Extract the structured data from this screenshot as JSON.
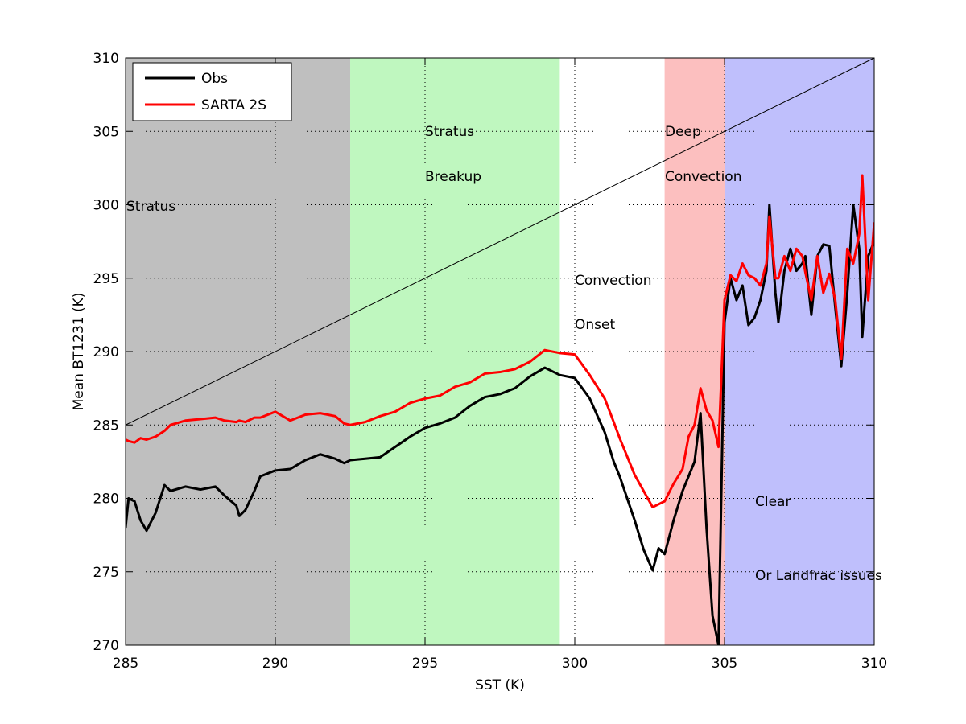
{
  "chart_data": {
    "type": "line",
    "x_label": "SST (K)",
    "y_label": "Mean BT1231 (K)",
    "xlim": [
      285,
      310
    ],
    "ylim": [
      270,
      310
    ],
    "xticks": [
      285,
      290,
      295,
      300,
      305,
      310
    ],
    "yticks": [
      270,
      275,
      280,
      285,
      290,
      295,
      300,
      305,
      310
    ],
    "grid": true,
    "legend": "upper-left",
    "regions": [
      {
        "from": 285,
        "to": 292.5,
        "color": "#bfbfbf"
      },
      {
        "from": 292.5,
        "to": 299.5,
        "color": "#bff7bf"
      },
      {
        "from": 303,
        "to": 305,
        "color": "#fcbfbf"
      },
      {
        "from": 305,
        "to": 310,
        "color": "#bfbffc"
      }
    ],
    "annotations": [
      "Stratus",
      "Stratus",
      "Breakup",
      "Convection",
      "Onset",
      "Deep",
      "Convection",
      "Clear",
      "Or Landfrac issues"
    ],
    "reference_line": {
      "x": [
        285,
        310
      ],
      "y": [
        285,
        310
      ],
      "color": "#000000"
    },
    "x": [
      285,
      285.1,
      285.3,
      285.5,
      285.7,
      286,
      286.3,
      286.5,
      287,
      287.5,
      288,
      288.3,
      288.7,
      288.8,
      289,
      289.3,
      289.5,
      290,
      290.5,
      291,
      291.5,
      292,
      292.3,
      292.5,
      293,
      293.5,
      294,
      294.5,
      295,
      295.5,
      296,
      296.5,
      297,
      297.5,
      298,
      298.5,
      299,
      299.5,
      300,
      300.5,
      301,
      301.3,
      301.5,
      302,
      302.3,
      302.6,
      302.8,
      303,
      303.3,
      303.6,
      303.8,
      304,
      304.2,
      304.4,
      304.6,
      304.8,
      305,
      305.2,
      305.4,
      305.6,
      305.8,
      306,
      306.2,
      306.4,
      306.5,
      306.7,
      306.8,
      307,
      307.2,
      307.4,
      307.6,
      307.7,
      307.9,
      308.1,
      308.3,
      308.5,
      308.7,
      308.9,
      309.1,
      309.3,
      309.5,
      309.6,
      309.8,
      310
    ],
    "series": [
      {
        "name": "Obs",
        "color": "#000000",
        "values": [
          278,
          280,
          279.8,
          278.5,
          277.8,
          279,
          280.9,
          280.5,
          280.8,
          280.6,
          280.8,
          280.2,
          279.5,
          278.8,
          279.2,
          280.5,
          281.5,
          281.9,
          282,
          282.6,
          283,
          282.7,
          282.4,
          282.6,
          282.7,
          282.8,
          283.5,
          284.2,
          284.8,
          285.1,
          285.5,
          286.3,
          286.9,
          287.1,
          287.5,
          288.3,
          288.9,
          288.4,
          288.2,
          286.8,
          284.5,
          282.5,
          281.5,
          278.5,
          276.5,
          275.1,
          276.6,
          276.2,
          278.5,
          280.5,
          281.5,
          282.5,
          285.8,
          278,
          272,
          270,
          292,
          295,
          293.5,
          294.5,
          291.8,
          292.3,
          293.5,
          295.5,
          300,
          294,
          292,
          295.5,
          297,
          295.5,
          296,
          296.5,
          292.5,
          296.5,
          297.3,
          297.2,
          293,
          289,
          294,
          300,
          297,
          291,
          296.5,
          297.5
        ]
      },
      {
        "name": "SARTA 2S",
        "color": "#ff0000",
        "values": [
          284,
          283.9,
          283.8,
          284.1,
          284,
          284.2,
          284.6,
          285,
          285.3,
          285.4,
          285.5,
          285.3,
          285.2,
          285.3,
          285.2,
          285.5,
          285.5,
          285.9,
          285.3,
          285.7,
          285.8,
          285.6,
          285.1,
          285,
          285.2,
          285.6,
          285.9,
          286.5,
          286.8,
          287,
          287.6,
          287.9,
          288.5,
          288.6,
          288.8,
          289.3,
          290.1,
          289.9,
          289.8,
          288.4,
          286.8,
          285.2,
          284.1,
          281.6,
          280.5,
          279.4,
          279.6,
          279.8,
          281,
          282,
          284.2,
          285,
          287.5,
          286,
          285.3,
          283.5,
          293.5,
          295.2,
          294.8,
          296,
          295.2,
          295,
          294.5,
          296,
          299.2,
          295,
          295,
          296.5,
          295.5,
          297,
          296.5,
          295.4,
          293.5,
          296.5,
          294,
          295.3,
          293.5,
          289.5,
          297,
          296,
          298,
          302,
          293.5,
          298.8
        ]
      }
    ]
  }
}
